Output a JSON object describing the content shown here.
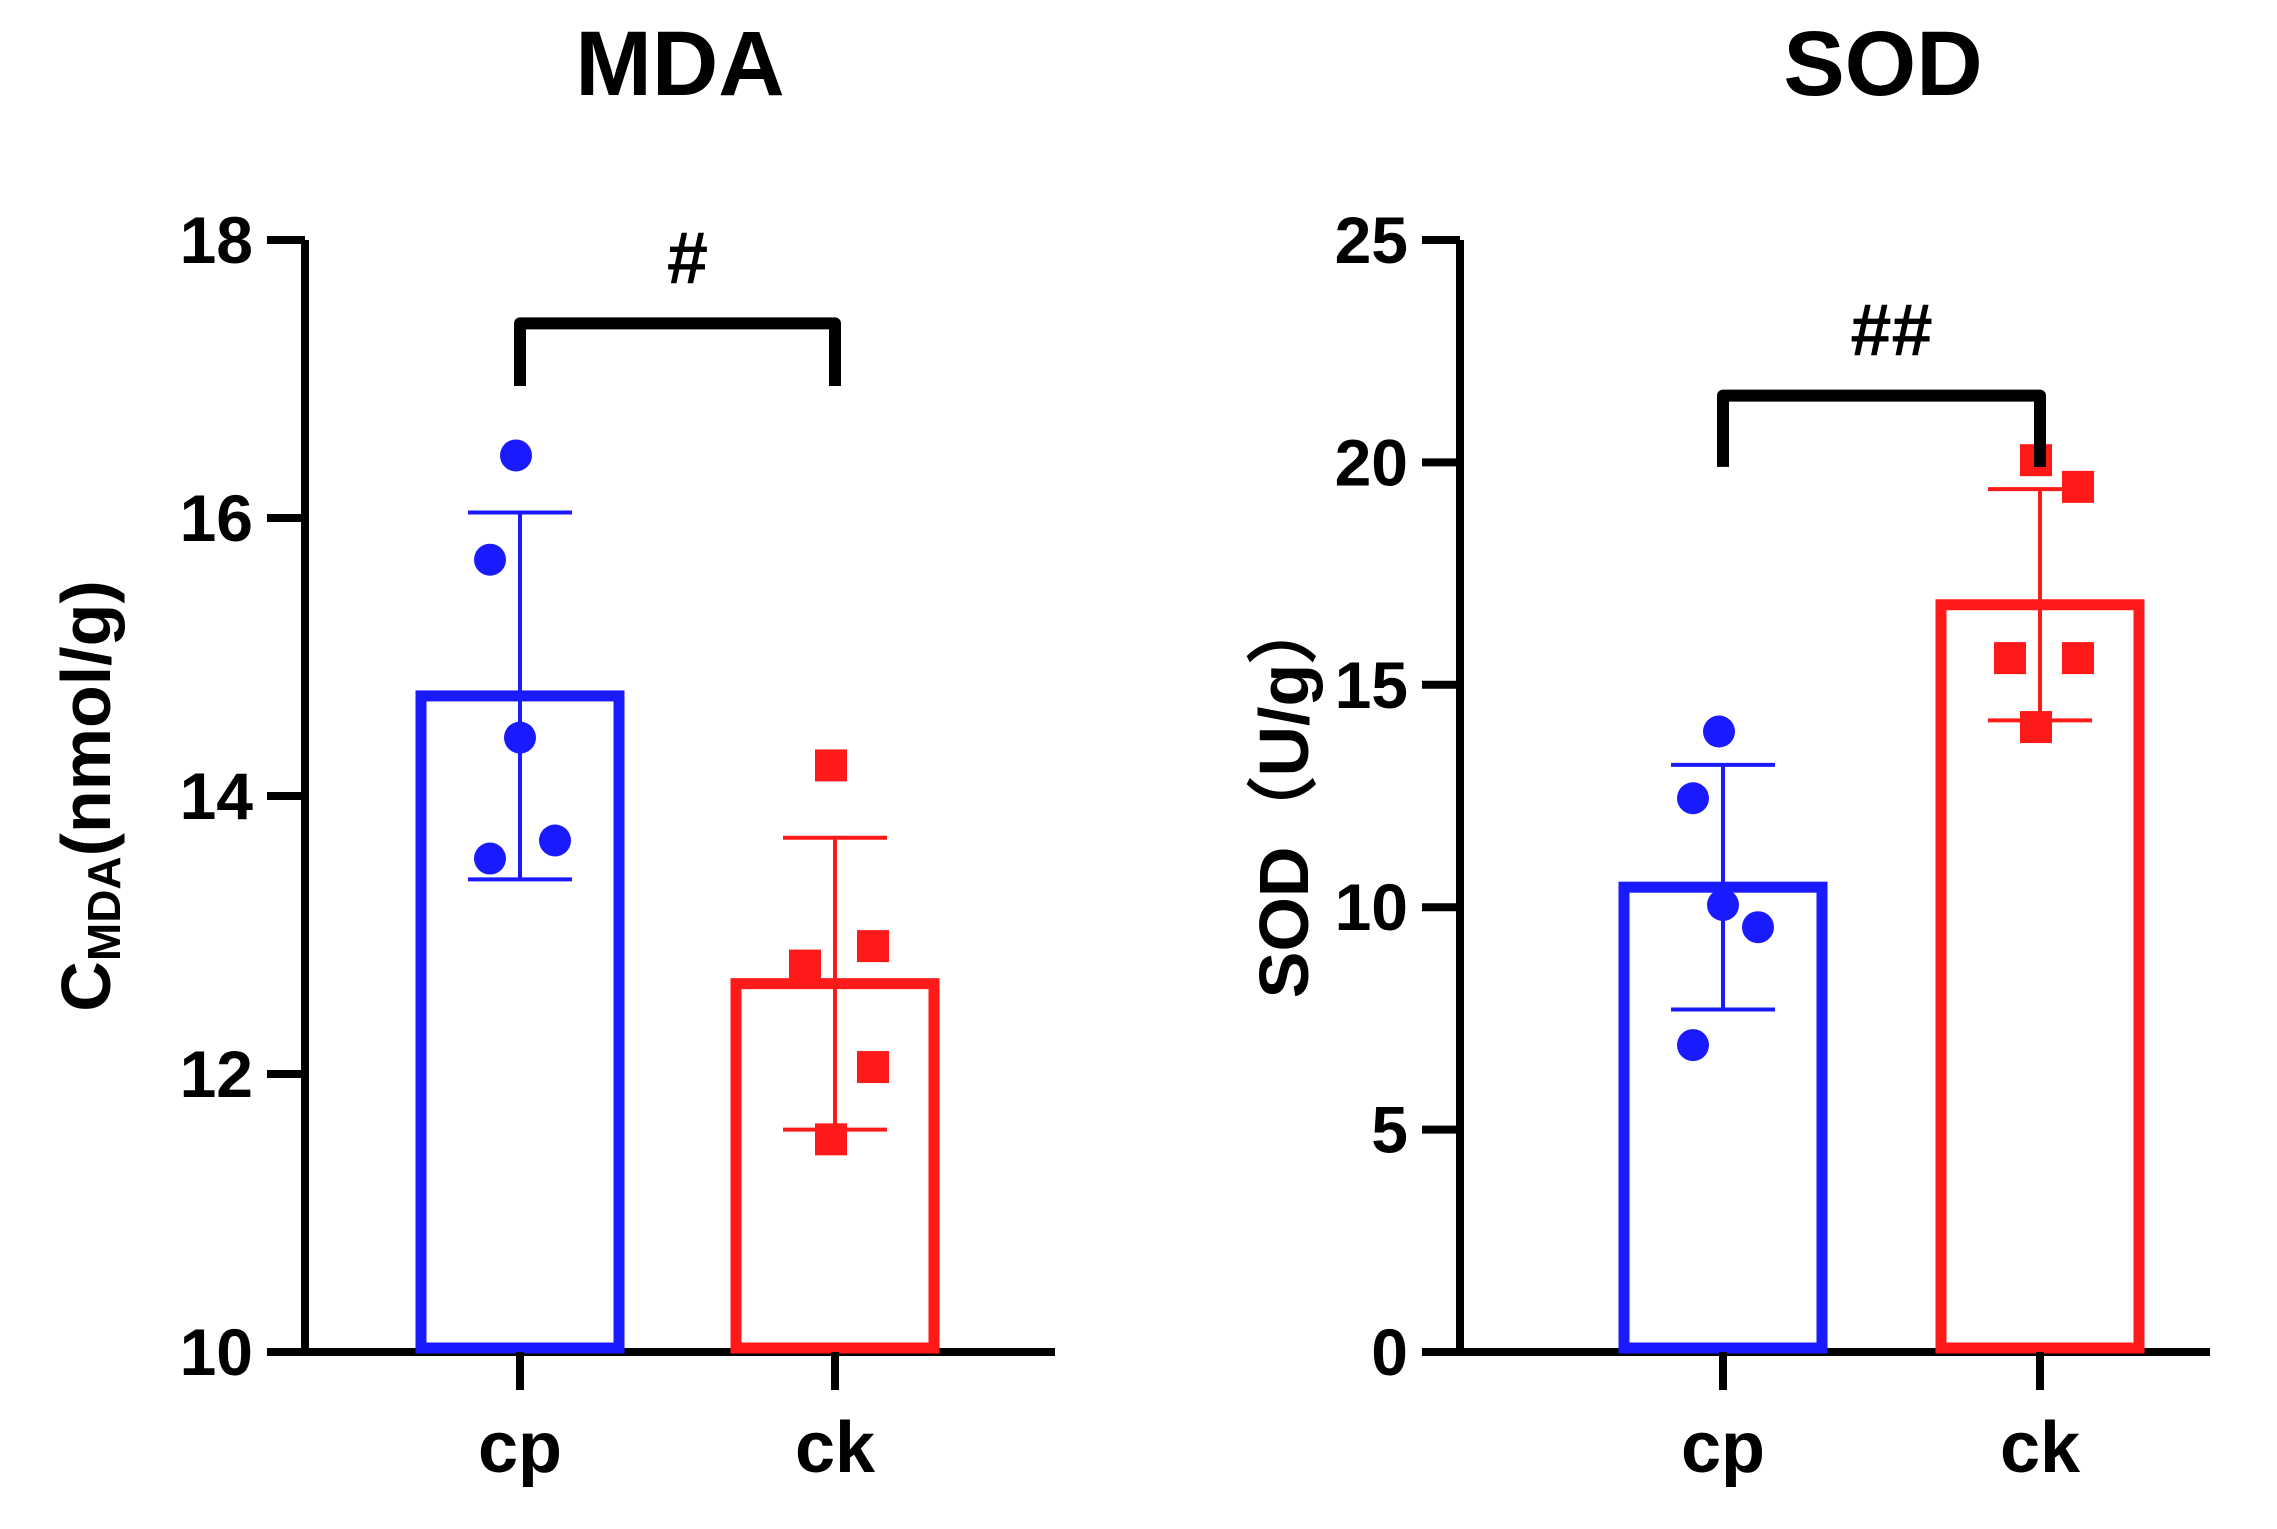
{
  "chart_data": [
    {
      "type": "bar",
      "title": "MDA",
      "ylabel": "CMDA(nmol/g)",
      "ylabel_parts": {
        "main": "C",
        "subscript": "MDA",
        "rest": "(nmol/g)"
      },
      "xlabel": "",
      "ylim": [
        10,
        18
      ],
      "yticks": [
        10,
        12,
        14,
        16,
        18
      ],
      "categories": [
        "cp",
        "ck"
      ],
      "series": [
        {
          "name": "cp",
          "color": "#1a1aff",
          "marker": "circle",
          "mean": 14.72,
          "sd": 1.32,
          "points": [
            16.45,
            15.7,
            14.42,
            13.68,
            13.55
          ]
        },
        {
          "name": "ck",
          "color": "#ff1a1a",
          "marker": "square",
          "mean": 12.65,
          "sd": 1.05,
          "points": [
            14.22,
            12.92,
            12.78,
            12.05,
            11.53
          ]
        }
      ],
      "significance": {
        "label": "#",
        "between": [
          "cp",
          "ck"
        ],
        "bracket_y": 17.4,
        "bracket_bottom": 16.95
      }
    },
    {
      "type": "bar",
      "title": "SOD",
      "ylabel": "SOD（U/g）",
      "xlabel": "",
      "ylim": [
        0,
        25
      ],
      "yticks": [
        0,
        5,
        10,
        15,
        20,
        25
      ],
      "categories": [
        "cp",
        "ck"
      ],
      "series": [
        {
          "name": "cp",
          "color": "#1a1aff",
          "marker": "circle",
          "mean": 10.45,
          "sd": 2.75,
          "points": [
            13.95,
            12.45,
            10.05,
            9.55,
            6.9
          ]
        },
        {
          "name": "ck",
          "color": "#ff1a1a",
          "marker": "square",
          "mean": 16.8,
          "sd": 2.6,
          "points": [
            20.05,
            19.45,
            15.6,
            15.6,
            14.05
          ]
        }
      ],
      "significance": {
        "label": "##",
        "between": [
          "cp",
          "ck"
        ],
        "bracket_y": 21.5,
        "bracket_bottom": 19.9
      }
    }
  ]
}
